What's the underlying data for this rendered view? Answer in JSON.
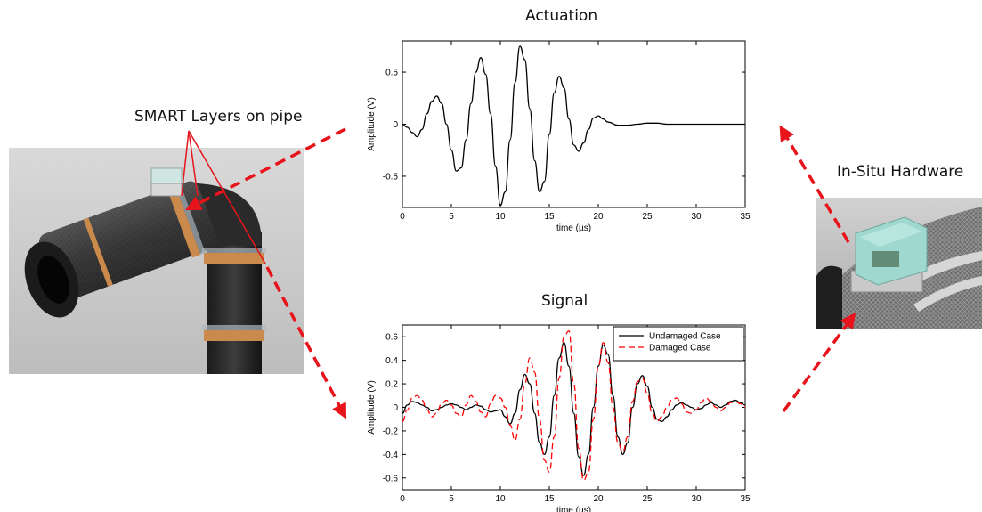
{
  "labels": {
    "smart_layers": "SMART Layers on pipe",
    "in_situ": "In-Situ Hardware"
  },
  "chart_data": [
    {
      "type": "line",
      "title": "Actuation",
      "xlabel": "time (µs)",
      "ylabel": "Amplitude (V)",
      "xlim": [
        0,
        35
      ],
      "ylim": [
        -0.8,
        0.8
      ],
      "xticks": [
        0,
        5,
        10,
        15,
        20,
        25,
        30,
        35
      ],
      "yticks": [
        -0.5,
        0,
        0.5
      ],
      "grid": false,
      "series": [
        {
          "color": "#000000",
          "dash": "solid",
          "x": [
            0,
            0.5,
            1,
            1.5,
            2,
            2.5,
            3,
            3.5,
            4,
            4.5,
            5,
            5.5,
            6,
            6.5,
            7,
            7.5,
            8,
            8.5,
            9,
            9.5,
            10,
            10.5,
            11,
            11.5,
            12,
            12.5,
            13,
            13.5,
            14,
            14.5,
            15,
            15.5,
            16,
            16.5,
            17,
            17.5,
            18,
            18.5,
            19,
            19.5,
            20,
            20.5,
            21,
            22,
            23,
            24,
            25,
            26,
            27,
            28,
            30,
            32,
            35
          ],
          "y": [
            0,
            -0.03,
            -0.08,
            -0.12,
            -0.05,
            0.1,
            0.22,
            0.27,
            0.2,
            0.0,
            -0.25,
            -0.45,
            -0.42,
            -0.15,
            0.2,
            0.5,
            0.64,
            0.48,
            0.1,
            -0.4,
            -0.78,
            -0.65,
            -0.15,
            0.4,
            0.75,
            0.62,
            0.15,
            -0.35,
            -0.65,
            -0.55,
            -0.1,
            0.3,
            0.46,
            0.35,
            0.05,
            -0.2,
            -0.26,
            -0.18,
            -0.05,
            0.06,
            0.08,
            0.05,
            0.02,
            -0.01,
            -0.01,
            0.0,
            0.01,
            0.01,
            0.0,
            0.0,
            0.0,
            0.0,
            0.0
          ]
        }
      ]
    },
    {
      "type": "line",
      "title": "Signal",
      "xlabel": "time (µs)",
      "ylabel": "Amplitude (V)",
      "xlim": [
        0,
        35
      ],
      "ylim": [
        -0.7,
        0.7
      ],
      "xticks": [
        0,
        5,
        10,
        15,
        20,
        25,
        30,
        35
      ],
      "yticks": [
        -0.6,
        -0.4,
        -0.2,
        0,
        0.2,
        0.4,
        0.6
      ],
      "grid": false,
      "legend": "top-right",
      "series": [
        {
          "name": "Undamaged Case",
          "color": "#000000",
          "dash": "solid",
          "x": [
            0,
            0.5,
            1,
            1.5,
            2,
            2.5,
            3,
            3.5,
            4,
            4.5,
            5,
            5.5,
            6,
            6.5,
            7,
            7.5,
            8,
            8.5,
            9,
            9.5,
            10,
            10.5,
            11,
            11.5,
            12,
            12.5,
            13,
            13.5,
            14,
            14.5,
            15,
            15.5,
            16,
            16.5,
            17,
            17.5,
            18,
            18.5,
            19,
            19.5,
            20,
            20.5,
            21,
            21.5,
            22,
            22.5,
            23,
            23.5,
            24,
            24.5,
            25,
            25.5,
            26,
            26.5,
            27,
            27.5,
            28,
            28.5,
            29,
            29.5,
            30,
            30.5,
            31,
            31.5,
            32,
            32.5,
            33,
            33.5,
            34,
            34.5,
            35
          ],
          "y": [
            -0.05,
            0.02,
            0.05,
            0.04,
            0.02,
            0.0,
            -0.03,
            -0.02,
            0.0,
            0.02,
            0.03,
            0.02,
            0.0,
            -0.02,
            0.0,
            0.02,
            0.01,
            -0.02,
            -0.04,
            -0.03,
            -0.02,
            -0.08,
            -0.14,
            -0.05,
            0.15,
            0.28,
            0.2,
            -0.05,
            -0.3,
            -0.4,
            -0.25,
            0.1,
            0.42,
            0.55,
            0.35,
            -0.05,
            -0.42,
            -0.58,
            -0.4,
            0.0,
            0.35,
            0.53,
            0.45,
            0.1,
            -0.25,
            -0.4,
            -0.3,
            0.0,
            0.2,
            0.27,
            0.18,
            0.0,
            -0.1,
            -0.12,
            -0.08,
            -0.02,
            0.02,
            0.04,
            0.02,
            0.0,
            -0.02,
            -0.01,
            0.02,
            0.04,
            0.02,
            0.0,
            0.02,
            0.05,
            0.06,
            0.04,
            0.02
          ]
        },
        {
          "name": "Damaged Case",
          "color": "#ff0000",
          "dash": "dashed",
          "x": [
            0,
            0.5,
            1,
            1.5,
            2,
            2.5,
            3,
            3.5,
            4,
            4.5,
            5,
            5.5,
            6,
            6.5,
            7,
            7.5,
            8,
            8.5,
            9,
            9.5,
            10,
            10.5,
            11,
            11.5,
            12,
            12.5,
            13,
            13.5,
            14,
            14.5,
            15,
            15.5,
            16,
            16.5,
            17,
            17.5,
            18,
            18.5,
            19,
            19.5,
            20,
            20.5,
            21,
            21.5,
            22,
            22.5,
            23,
            23.5,
            24,
            24.5,
            25,
            25.5,
            26,
            26.5,
            27,
            27.5,
            28,
            28.5,
            29,
            29.5,
            30,
            30.5,
            31,
            31.5,
            32,
            32.5,
            33,
            33.5,
            34,
            34.5,
            35
          ],
          "y": [
            -0.12,
            -0.02,
            0.08,
            0.1,
            0.06,
            -0.02,
            -0.08,
            -0.05,
            0.03,
            0.06,
            0.02,
            -0.05,
            -0.08,
            0.02,
            0.1,
            0.05,
            -0.04,
            -0.08,
            0.03,
            0.1,
            0.08,
            0.0,
            -0.15,
            -0.28,
            -0.1,
            0.2,
            0.42,
            0.3,
            -0.1,
            -0.45,
            -0.55,
            -0.25,
            0.25,
            0.6,
            0.65,
            0.2,
            -0.35,
            -0.62,
            -0.55,
            -0.1,
            0.35,
            0.55,
            0.38,
            0.0,
            -0.3,
            -0.38,
            -0.25,
            0.05,
            0.22,
            0.25,
            0.12,
            -0.05,
            -0.12,
            -0.08,
            0.0,
            0.06,
            0.08,
            0.03,
            -0.04,
            -0.05,
            -0.02,
            0.04,
            0.08,
            0.05,
            0.0,
            -0.03,
            0.0,
            0.04,
            0.05,
            0.03,
            0.0
          ]
        }
      ]
    }
  ]
}
